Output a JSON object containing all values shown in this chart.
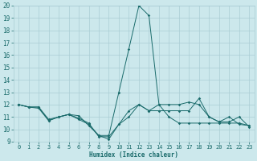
{
  "xlabel": "Humidex (Indice chaleur)",
  "xlim": [
    -0.5,
    23.5
  ],
  "ylim": [
    9,
    20
  ],
  "xticks": [
    0,
    1,
    2,
    3,
    4,
    5,
    6,
    7,
    8,
    9,
    10,
    11,
    12,
    13,
    14,
    15,
    16,
    17,
    18,
    19,
    20,
    21,
    22,
    23
  ],
  "yticks": [
    9,
    10,
    11,
    12,
    13,
    14,
    15,
    16,
    17,
    18,
    19,
    20
  ],
  "bg_color": "#cce8ec",
  "grid_color": "#aacdd4",
  "line_color": "#1a6b6b",
  "line1_x": [
    0,
    1,
    2,
    3,
    4,
    5,
    6,
    7,
    8,
    9,
    10,
    11,
    12,
    13,
    14,
    15,
    16,
    17,
    18,
    19,
    20,
    21,
    22,
    23
  ],
  "line1_y": [
    12.0,
    11.8,
    11.8,
    10.7,
    11.0,
    11.2,
    11.1,
    10.3,
    9.5,
    9.5,
    13.0,
    16.5,
    20.0,
    19.2,
    12.0,
    12.0,
    12.0,
    12.2,
    12.0,
    11.0,
    10.6,
    11.0,
    10.4,
    10.3
  ],
  "line2_x": [
    0,
    1,
    2,
    3,
    4,
    5,
    6,
    7,
    8,
    9,
    10,
    11,
    12,
    13,
    14,
    15,
    16,
    17,
    18,
    19,
    20,
    21,
    22,
    23
  ],
  "line2_y": [
    12.0,
    11.8,
    11.8,
    10.8,
    11.0,
    11.2,
    10.9,
    10.5,
    9.4,
    9.4,
    10.4,
    11.5,
    12.0,
    11.5,
    11.5,
    11.5,
    11.5,
    11.5,
    12.5,
    11.0,
    10.6,
    10.6,
    11.0,
    10.2
  ],
  "line3_x": [
    0,
    1,
    2,
    3,
    4,
    5,
    6,
    7,
    8,
    9,
    10,
    11,
    12,
    13,
    14,
    15,
    16,
    17,
    18,
    19,
    20,
    21,
    22,
    23
  ],
  "line3_y": [
    12.0,
    11.8,
    11.7,
    10.7,
    11.0,
    11.2,
    10.8,
    10.4,
    9.5,
    9.2,
    10.4,
    11.0,
    12.0,
    11.5,
    12.0,
    11.0,
    10.5,
    10.5,
    10.5,
    10.5,
    10.5,
    10.5,
    10.5,
    10.3
  ]
}
